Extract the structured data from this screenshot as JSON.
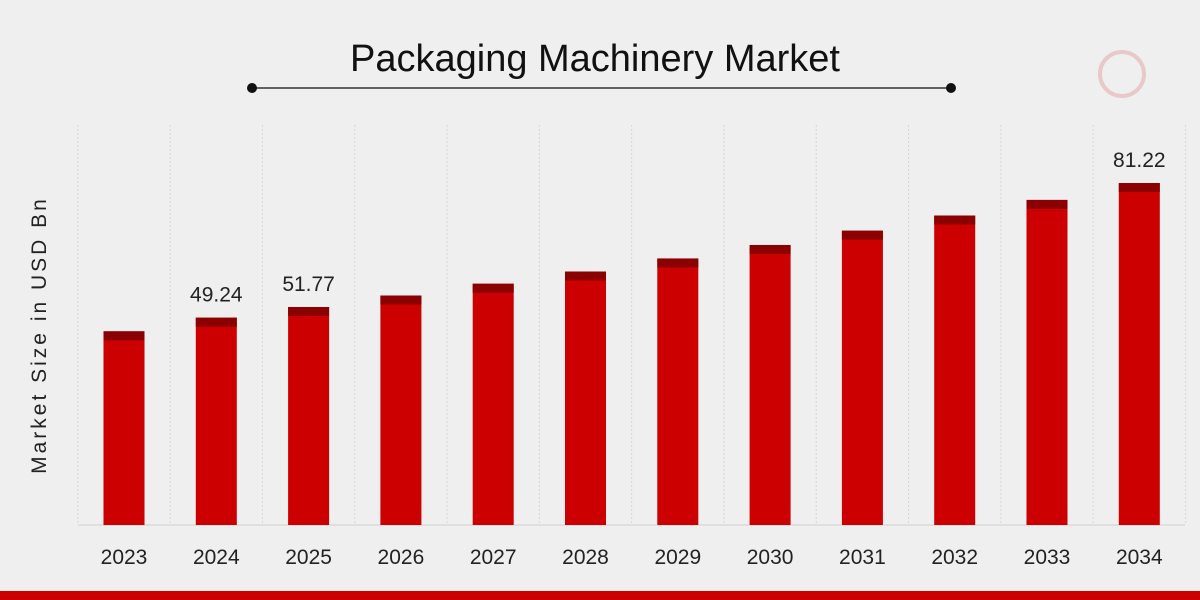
{
  "chart_data": {
    "type": "bar",
    "title": "Packaging Machinery Market",
    "xlabel": "",
    "ylabel": "Market Size in USD Bn",
    "categories": [
      "2023",
      "2024",
      "2025",
      "2026",
      "2027",
      "2028",
      "2029",
      "2030",
      "2031",
      "2032",
      "2033",
      "2034"
    ],
    "values": [
      46.0,
      49.24,
      51.77,
      54.5,
      57.3,
      60.2,
      63.3,
      66.5,
      69.9,
      73.5,
      77.2,
      81.22
    ],
    "data_labels": {
      "2024": "49.24",
      "2025": "51.77",
      "2034": "81.22"
    },
    "ylim": [
      0,
      85
    ],
    "grid": "vertical",
    "legend": "none",
    "colors": {
      "bar": "#cc0000",
      "bar_cap": "#8b0000",
      "background": "#efefef",
      "strip": "#cc0000"
    }
  }
}
